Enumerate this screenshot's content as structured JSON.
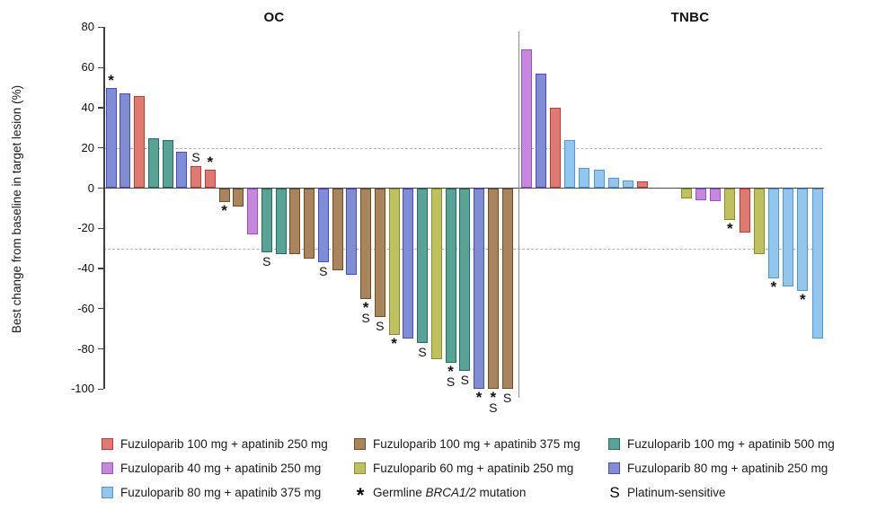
{
  "chart_data": {
    "type": "bar",
    "subtype": "waterfall",
    "ylabel": "Best change from baseline in target lesion (%)",
    "ylim": [
      -100,
      80
    ],
    "yticks": [
      80,
      60,
      40,
      20,
      0,
      -20,
      -40,
      -60,
      -80,
      -100
    ],
    "reference_lines_pct": [
      20,
      -30
    ],
    "grid": false,
    "bars_format": "[percent_change, color_key, markers]",
    "colors": {
      "red": {
        "fill": "#E0796F",
        "stroke": "#C23B33"
      },
      "purple40": {
        "fill": "#C687DE",
        "stroke": "#9C4EC5"
      },
      "lblue": {
        "fill": "#93C6EE",
        "stroke": "#4E95DC"
      },
      "brown": {
        "fill": "#A9845C",
        "stroke": "#6E4D22"
      },
      "green60": {
        "fill": "#BFC05E",
        "stroke": "#8B8C2E"
      },
      "teal": {
        "fill": "#57A396",
        "stroke": "#2B6B5F"
      },
      "blue80": {
        "fill": "#7E8DD4",
        "stroke": "#4A49CE"
      }
    },
    "panels": [
      {
        "title": "OC",
        "bars": [
          [
            50,
            "blue80",
            "*"
          ],
          [
            47,
            "blue80",
            ""
          ],
          [
            46,
            "red",
            ""
          ],
          [
            25,
            "teal",
            ""
          ],
          [
            24,
            "teal",
            ""
          ],
          [
            18,
            "blue80",
            ""
          ],
          [
            11,
            "red",
            "S"
          ],
          [
            9,
            "red",
            "*"
          ],
          [
            -7,
            "brown",
            "*"
          ],
          [
            -9,
            "brown",
            ""
          ],
          [
            -23,
            "purple40",
            ""
          ],
          [
            -32,
            "teal",
            "S"
          ],
          [
            -33,
            "teal",
            ""
          ],
          [
            -33,
            "brown",
            ""
          ],
          [
            -35,
            "brown",
            ""
          ],
          [
            -37,
            "blue80",
            "S"
          ],
          [
            -41,
            "brown",
            ""
          ],
          [
            -43,
            "blue80",
            ""
          ],
          [
            -55,
            "brown",
            "*S"
          ],
          [
            -64,
            "brown",
            "S"
          ],
          [
            -73,
            "green60",
            "*"
          ],
          [
            -75,
            "blue80",
            ""
          ],
          [
            -77,
            "teal",
            "S"
          ],
          [
            -85,
            "green60",
            ""
          ],
          [
            -87,
            "teal",
            "*S"
          ],
          [
            -91,
            "teal",
            "S"
          ],
          [
            -100,
            "blue80",
            "*"
          ],
          [
            -100,
            "brown",
            "*S"
          ],
          [
            -100,
            "brown",
            "S"
          ]
        ]
      },
      {
        "title": "TNBC",
        "bars": [
          [
            69,
            "purple40",
            ""
          ],
          [
            57,
            "blue80",
            ""
          ],
          [
            40,
            "red",
            ""
          ],
          [
            24,
            "lblue",
            ""
          ],
          [
            10,
            "lblue",
            ""
          ],
          [
            9,
            "lblue",
            ""
          ],
          [
            5,
            "lblue",
            ""
          ],
          [
            4,
            "lblue",
            ""
          ],
          [
            3.5,
            "red",
            ""
          ],
          [
            0,
            "",
            ""
          ],
          [
            0,
            "",
            ""
          ],
          [
            -5,
            "green60",
            ""
          ],
          [
            -6,
            "purple40",
            ""
          ],
          [
            -6.5,
            "purple40",
            ""
          ],
          [
            -16,
            "green60",
            "*"
          ],
          [
            -22,
            "red",
            ""
          ],
          [
            -33,
            "green60",
            ""
          ],
          [
            -45,
            "lblue",
            "*"
          ],
          [
            -49,
            "lblue",
            ""
          ],
          [
            -51,
            "lblue",
            "*"
          ],
          [
            -75,
            "lblue",
            ""
          ]
        ]
      }
    ],
    "marker_meanings": {
      "*": "Germline BRCA1/2 mutation",
      "S": "Platinum-sensitive"
    }
  },
  "legend": {
    "columns": [
      [
        {
          "swatch": "red",
          "label": "Fuzuloparib 100 mg + apatinib 250 mg"
        },
        {
          "swatch": "purple40",
          "label": "Fuzuloparib 40 mg + apatinib 250 mg"
        },
        {
          "swatch": "lblue",
          "label": "Fuzuloparib 80 mg + apatinib 375 mg"
        }
      ],
      [
        {
          "swatch": "brown",
          "label": "Fuzuloparib 100 mg + apatinib 375 mg"
        },
        {
          "swatch": "green60",
          "label": "Fuzuloparib 60 mg + apatinib 250 mg"
        },
        {
          "symbol": "*",
          "label_parts": [
            {
              "t": "Germline "
            },
            {
              "t": "BRCA1/2",
              "italic": true
            },
            {
              "t": " mutation"
            }
          ]
        }
      ],
      [
        {
          "swatch": "teal",
          "label": "Fuzuloparib 100 mg + apatinib 500 mg"
        },
        {
          "swatch": "blue80",
          "label": "Fuzuloparib 80 mg + apatinib 250 mg"
        },
        {
          "symbol": "S",
          "label": "Platinum-sensitive"
        }
      ]
    ]
  }
}
